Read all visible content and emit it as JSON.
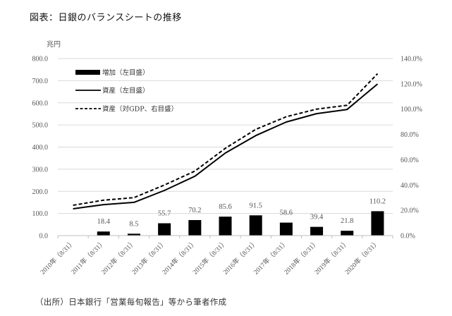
{
  "title": "図表：日銀のバランスシートの推移",
  "source_note": "（出所）日本銀行「営業毎旬報告」等から筆者作成",
  "chart_data": {
    "type": "bar+line",
    "title": "図表：日銀のバランスシートの推移",
    "left_axis": {
      "unit_label": "兆円",
      "range": [
        0,
        800
      ],
      "ticks": [
        "0.0",
        "100.0",
        "200.0",
        "300.0",
        "400.0",
        "500.0",
        "600.0",
        "700.0",
        "800.0"
      ],
      "tick_values": [
        0,
        100,
        200,
        300,
        400,
        500,
        600,
        700,
        800
      ]
    },
    "right_axis": {
      "range": [
        0,
        140
      ],
      "ticks": [
        "0.0%",
        "20.0%",
        "40.0%",
        "60.0%",
        "80.0%",
        "100.0%",
        "120.0%",
        "140.0%"
      ],
      "tick_values": [
        0,
        20,
        40,
        60,
        80,
        100,
        120,
        140
      ]
    },
    "grid": true,
    "legend_position": "top-left",
    "categories": [
      "2010年（8/31）",
      "2011年（8/31）",
      "2012年（8/31）",
      "2013年（8/31）",
      "2014年（8/31）",
      "2015年（8/31）",
      "2016年（8/31）",
      "2017年（8/31）",
      "2018年（8/31）",
      "2019年（8/31）",
      "2020年（8/31）"
    ],
    "series": [
      {
        "name": "増加（左目盛）",
        "type": "bar",
        "axis": "left",
        "color": "#000000",
        "values": [
          null,
          18.4,
          8.5,
          55.7,
          70.2,
          85.6,
          91.5,
          58.6,
          39.4,
          21.8,
          110.2
        ],
        "labels": [
          "",
          "18.4",
          "8.5",
          "55.7",
          "70.2",
          "85.6",
          "91.5",
          "58.6",
          "39.4",
          "21.8",
          "110.2"
        ]
      },
      {
        "name": "資産（左目盛）",
        "type": "line",
        "axis": "left",
        "style": "solid",
        "color": "#000000",
        "values": [
          121,
          140,
          150,
          204,
          268,
          373,
          452,
          513,
          551,
          570,
          685
        ]
      },
      {
        "name": "資産（対GDP、右目盛）",
        "type": "line",
        "axis": "right",
        "style": "dashed",
        "color": "#000000",
        "values": [
          24,
          28,
          30,
          40,
          51,
          69,
          84,
          94,
          100,
          103,
          128
        ]
      }
    ]
  }
}
